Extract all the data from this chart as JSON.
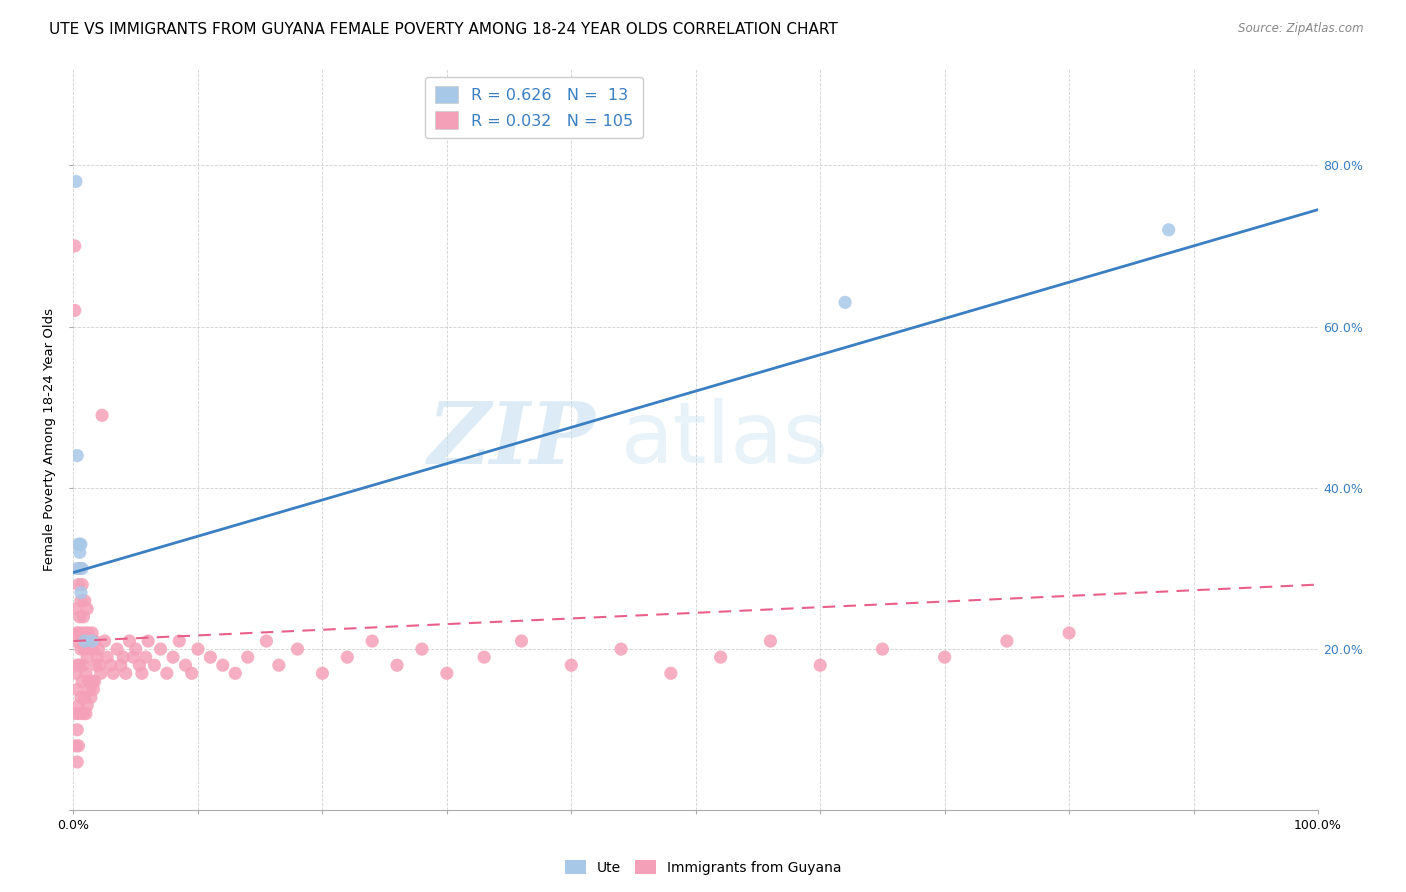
{
  "title": "UTE VS IMMIGRANTS FROM GUYANA FEMALE POVERTY AMONG 18-24 YEAR OLDS CORRELATION CHART",
  "source": "Source: ZipAtlas.com",
  "ylabel": "Female Poverty Among 18-24 Year Olds",
  "xlim": [
    0,
    1.0
  ],
  "ylim": [
    0,
    0.92
  ],
  "xticks": [
    0.0,
    0.1,
    0.2,
    0.3,
    0.4,
    0.5,
    0.6,
    0.7,
    0.8,
    0.9,
    1.0
  ],
  "xticklabels": [
    "0.0%",
    "",
    "",
    "",
    "",
    "",
    "",
    "",
    "",
    "",
    "100.0%"
  ],
  "ytick_positions": [
    0.0,
    0.2,
    0.4,
    0.6,
    0.8
  ],
  "yticklabels_right": [
    "",
    "20.0%",
    "40.0%",
    "60.0%",
    "80.0%"
  ],
  "watermark_zip": "ZIP",
  "watermark_atlas": "atlas",
  "ute_color": "#a8c8e8",
  "immigrants_color": "#f4a0b8",
  "trendline_ute_color": "#3a7fc1",
  "trendline_immigrants_color": "#e8608a",
  "legend_R_ute": "0.626",
  "legend_N_ute": "13",
  "legend_R_imm": "0.032",
  "legend_N_imm": "105",
  "ute_scatter_x": [
    0.002,
    0.003,
    0.003,
    0.004,
    0.005,
    0.005,
    0.006,
    0.006,
    0.007,
    0.009,
    0.015,
    0.62,
    0.88
  ],
  "ute_scatter_y": [
    0.78,
    0.44,
    0.3,
    0.33,
    0.32,
    0.33,
    0.27,
    0.33,
    0.3,
    0.21,
    0.21,
    0.63,
    0.72
  ],
  "imm_scatter_x": [
    0.001,
    0.001,
    0.002,
    0.002,
    0.002,
    0.002,
    0.002,
    0.003,
    0.003,
    0.003,
    0.003,
    0.003,
    0.004,
    0.004,
    0.004,
    0.004,
    0.004,
    0.005,
    0.005,
    0.005,
    0.005,
    0.006,
    0.006,
    0.006,
    0.007,
    0.007,
    0.007,
    0.008,
    0.008,
    0.008,
    0.009,
    0.009,
    0.009,
    0.01,
    0.01,
    0.01,
    0.011,
    0.011,
    0.011,
    0.012,
    0.012,
    0.013,
    0.013,
    0.014,
    0.014,
    0.015,
    0.015,
    0.016,
    0.016,
    0.017,
    0.017,
    0.018,
    0.019,
    0.02,
    0.021,
    0.022,
    0.023,
    0.025,
    0.027,
    0.03,
    0.032,
    0.035,
    0.038,
    0.04,
    0.042,
    0.045,
    0.048,
    0.05,
    0.053,
    0.055,
    0.058,
    0.06,
    0.065,
    0.07,
    0.075,
    0.08,
    0.085,
    0.09,
    0.095,
    0.1,
    0.11,
    0.12,
    0.13,
    0.14,
    0.155,
    0.165,
    0.18,
    0.2,
    0.22,
    0.24,
    0.26,
    0.28,
    0.3,
    0.33,
    0.36,
    0.4,
    0.44,
    0.48,
    0.52,
    0.56,
    0.6,
    0.65,
    0.7,
    0.75,
    0.8
  ],
  "imm_scatter_y": [
    0.7,
    0.62,
    0.25,
    0.21,
    0.17,
    0.12,
    0.08,
    0.22,
    0.18,
    0.15,
    0.1,
    0.06,
    0.28,
    0.22,
    0.18,
    0.13,
    0.08,
    0.3,
    0.24,
    0.18,
    0.12,
    0.26,
    0.2,
    0.14,
    0.28,
    0.22,
    0.16,
    0.24,
    0.18,
    0.12,
    0.26,
    0.2,
    0.14,
    0.22,
    0.17,
    0.12,
    0.25,
    0.19,
    0.13,
    0.22,
    0.16,
    0.21,
    0.15,
    0.2,
    0.14,
    0.22,
    0.16,
    0.2,
    0.15,
    0.21,
    0.16,
    0.18,
    0.19,
    0.2,
    0.18,
    0.17,
    0.49,
    0.21,
    0.19,
    0.18,
    0.17,
    0.2,
    0.18,
    0.19,
    0.17,
    0.21,
    0.19,
    0.2,
    0.18,
    0.17,
    0.19,
    0.21,
    0.18,
    0.2,
    0.17,
    0.19,
    0.21,
    0.18,
    0.17,
    0.2,
    0.19,
    0.18,
    0.17,
    0.19,
    0.21,
    0.18,
    0.2,
    0.17,
    0.19,
    0.21,
    0.18,
    0.2,
    0.17,
    0.19,
    0.21,
    0.18,
    0.2,
    0.17,
    0.19,
    0.21,
    0.18,
    0.2,
    0.19,
    0.21,
    0.22
  ],
  "ute_trendline_x0": 0.0,
  "ute_trendline_y0": 0.295,
  "ute_trendline_x1": 1.0,
  "ute_trendline_y1": 0.745,
  "imm_trendline_x0": 0.0,
  "imm_trendline_y0": 0.21,
  "imm_trendline_x1": 1.0,
  "imm_trendline_y1": 0.28,
  "background_color": "#ffffff",
  "grid_color": "#cccccc",
  "title_fontsize": 11,
  "axis_label_fontsize": 9.5,
  "tick_fontsize": 9
}
